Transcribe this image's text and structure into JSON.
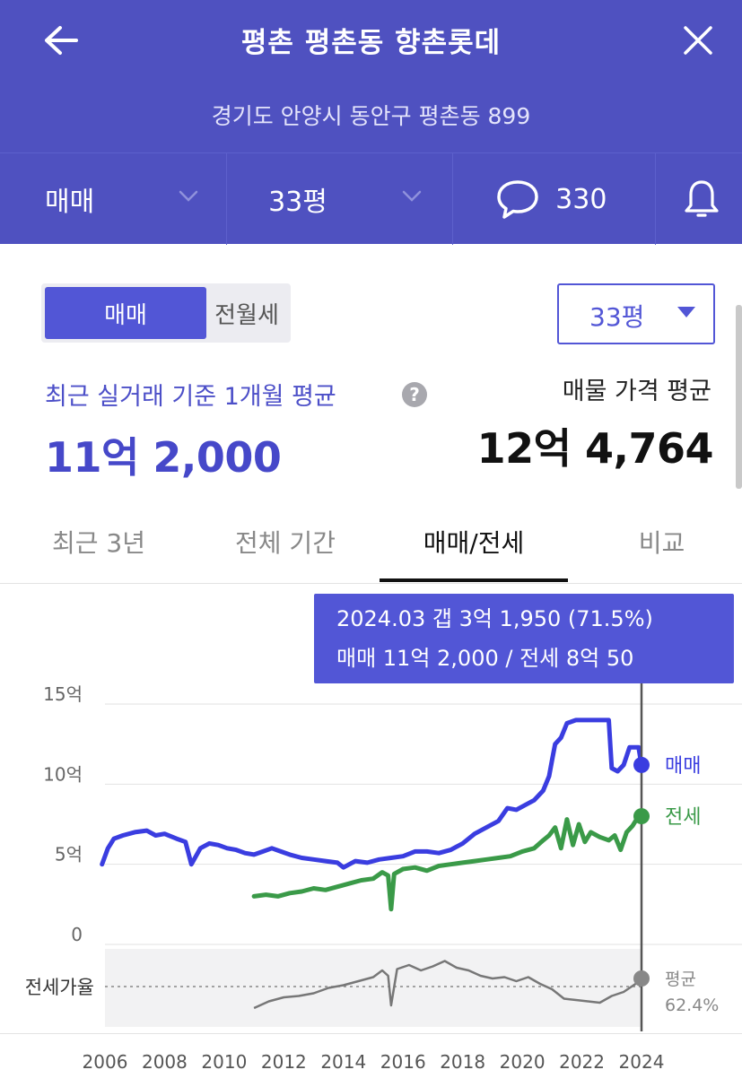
{
  "header": {
    "title": "평촌 평촌동 향촌롯데",
    "address": "경기도 안양시 동안구 평촌동 899",
    "filters": {
      "trade_type": "매매",
      "area": "33평",
      "comments": "330"
    },
    "bg_color": "#4f51c0"
  },
  "sub_toggle": {
    "active": "매매",
    "inactive": "전월세"
  },
  "area_select": {
    "value": "33평"
  },
  "summary": {
    "recent_label": "최근 실거래 기준 1개월 평균",
    "recent_price": "11억 2,000",
    "listing_label": "매물 가격 평균",
    "listing_price": "12억 4,764",
    "help_icon": "?"
  },
  "tabs": [
    {
      "label": "최근 3년",
      "active": false
    },
    {
      "label": "전체 기간",
      "active": false
    },
    {
      "label": "매매/전세",
      "active": true
    },
    {
      "label": "비교",
      "active": false
    }
  ],
  "tooltip": {
    "line1": "2024.03  갭 3억 1,950 (71.5%)",
    "line2": "매매 11억 2,000 / 전세 8억 50"
  },
  "chart_data": {
    "type": "line",
    "x_ticks": [
      "2006",
      "2008",
      "2010",
      "2012",
      "2014",
      "2016",
      "2018",
      "2020",
      "2022",
      "2024"
    ],
    "y_ticks": [
      "15억",
      "10억",
      "5억",
      "0"
    ],
    "ylim": [
      0,
      15
    ],
    "ratio_label": "전세가율",
    "series": [
      {
        "name": "매매",
        "color": "#3a3de0",
        "points": [
          [
            2005.9,
            5.0
          ],
          [
            2006.1,
            6.0
          ],
          [
            2006.3,
            6.6
          ],
          [
            2006.6,
            6.8
          ],
          [
            2007.0,
            7.0
          ],
          [
            2007.4,
            7.1
          ],
          [
            2007.7,
            6.8
          ],
          [
            2008.0,
            6.9
          ],
          [
            2008.4,
            6.6
          ],
          [
            2008.7,
            6.4
          ],
          [
            2008.9,
            5.0
          ],
          [
            2009.2,
            6.0
          ],
          [
            2009.5,
            6.3
          ],
          [
            2009.8,
            6.2
          ],
          [
            2010.1,
            6.0
          ],
          [
            2010.4,
            5.9
          ],
          [
            2010.7,
            5.7
          ],
          [
            2011.0,
            5.6
          ],
          [
            2011.3,
            5.8
          ],
          [
            2011.6,
            6.0
          ],
          [
            2011.9,
            5.8
          ],
          [
            2012.2,
            5.6
          ],
          [
            2012.6,
            5.4
          ],
          [
            2013.0,
            5.3
          ],
          [
            2013.4,
            5.2
          ],
          [
            2013.8,
            5.1
          ],
          [
            2014.0,
            4.8
          ],
          [
            2014.4,
            5.2
          ],
          [
            2014.8,
            5.1
          ],
          [
            2015.2,
            5.3
          ],
          [
            2015.6,
            5.4
          ],
          [
            2016.0,
            5.5
          ],
          [
            2016.4,
            5.8
          ],
          [
            2016.8,
            5.8
          ],
          [
            2017.2,
            5.7
          ],
          [
            2017.6,
            5.9
          ],
          [
            2018.0,
            6.3
          ],
          [
            2018.4,
            6.9
          ],
          [
            2018.8,
            7.3
          ],
          [
            2019.2,
            7.7
          ],
          [
            2019.5,
            8.5
          ],
          [
            2019.8,
            8.4
          ],
          [
            2020.1,
            8.7
          ],
          [
            2020.4,
            9.0
          ],
          [
            2020.7,
            9.6
          ],
          [
            2020.9,
            10.5
          ],
          [
            2021.0,
            11.5
          ],
          [
            2021.1,
            12.5
          ],
          [
            2021.3,
            12.9
          ],
          [
            2021.5,
            13.8
          ],
          [
            2021.8,
            14.0
          ],
          [
            2022.3,
            14.0
          ],
          [
            2022.9,
            14.0
          ],
          [
            2023.0,
            11.0
          ],
          [
            2023.2,
            10.8
          ],
          [
            2023.4,
            11.2
          ],
          [
            2023.6,
            12.3
          ],
          [
            2023.9,
            12.3
          ],
          [
            2024.0,
            11.2
          ]
        ]
      },
      {
        "name": "전세",
        "color": "#3a9a48",
        "points": [
          [
            2011.0,
            3.0
          ],
          [
            2011.4,
            3.1
          ],
          [
            2011.8,
            3.0
          ],
          [
            2012.2,
            3.2
          ],
          [
            2012.6,
            3.3
          ],
          [
            2013.0,
            3.5
          ],
          [
            2013.4,
            3.4
          ],
          [
            2013.8,
            3.6
          ],
          [
            2014.2,
            3.8
          ],
          [
            2014.6,
            4.0
          ],
          [
            2015.0,
            4.1
          ],
          [
            2015.3,
            4.5
          ],
          [
            2015.5,
            4.3
          ],
          [
            2015.6,
            2.2
          ],
          [
            2015.7,
            4.4
          ],
          [
            2016.0,
            4.7
          ],
          [
            2016.4,
            4.8
          ],
          [
            2016.8,
            4.6
          ],
          [
            2017.2,
            4.9
          ],
          [
            2017.6,
            5.0
          ],
          [
            2018.0,
            5.1
          ],
          [
            2018.4,
            5.2
          ],
          [
            2018.8,
            5.3
          ],
          [
            2019.2,
            5.4
          ],
          [
            2019.6,
            5.5
          ],
          [
            2020.0,
            5.8
          ],
          [
            2020.4,
            6.0
          ],
          [
            2020.7,
            6.5
          ],
          [
            2020.9,
            6.8
          ],
          [
            2021.1,
            7.3
          ],
          [
            2021.3,
            6.0
          ],
          [
            2021.5,
            7.8
          ],
          [
            2021.7,
            6.2
          ],
          [
            2021.9,
            7.5
          ],
          [
            2022.1,
            6.4
          ],
          [
            2022.3,
            7.0
          ],
          [
            2022.6,
            6.7
          ],
          [
            2022.9,
            6.5
          ],
          [
            2023.1,
            6.8
          ],
          [
            2023.3,
            5.9
          ],
          [
            2023.5,
            7.0
          ],
          [
            2023.7,
            7.4
          ],
          [
            2023.9,
            8.0
          ],
          [
            2024.0,
            8.0
          ]
        ]
      }
    ],
    "ratio_series": {
      "name": "전세가율",
      "color": "#777777",
      "points": [
        [
          2011.0,
          0.2
        ],
        [
          2011.5,
          0.45
        ],
        [
          2012.0,
          0.6
        ],
        [
          2012.5,
          0.65
        ],
        [
          2013.0,
          0.75
        ],
        [
          2013.5,
          0.95
        ],
        [
          2014.0,
          1.05
        ],
        [
          2014.5,
          1.2
        ],
        [
          2015.0,
          1.35
        ],
        [
          2015.3,
          1.6
        ],
        [
          2015.5,
          1.4
        ],
        [
          2015.6,
          0.3
        ],
        [
          2015.8,
          1.65
        ],
        [
          2016.2,
          1.8
        ],
        [
          2016.6,
          1.6
        ],
        [
          2017.0,
          1.75
        ],
        [
          2017.4,
          1.95
        ],
        [
          2017.8,
          1.7
        ],
        [
          2018.2,
          1.6
        ],
        [
          2018.6,
          1.4
        ],
        [
          2019.0,
          1.3
        ],
        [
          2019.4,
          1.35
        ],
        [
          2019.8,
          1.2
        ],
        [
          2020.2,
          1.35
        ],
        [
          2020.6,
          1.1
        ],
        [
          2021.0,
          0.9
        ],
        [
          2021.4,
          0.55
        ],
        [
          2021.8,
          0.5
        ],
        [
          2022.2,
          0.45
        ],
        [
          2022.6,
          0.4
        ],
        [
          2023.0,
          0.65
        ],
        [
          2023.4,
          0.8
        ],
        [
          2023.8,
          1.1
        ],
        [
          2024.0,
          1.3
        ]
      ]
    },
    "ratio_average": {
      "label": "평균",
      "value": "62.4%"
    },
    "end_labels": {
      "maemae": "매매",
      "jeonse": "전세"
    },
    "cursor_x": 2024.0
  }
}
